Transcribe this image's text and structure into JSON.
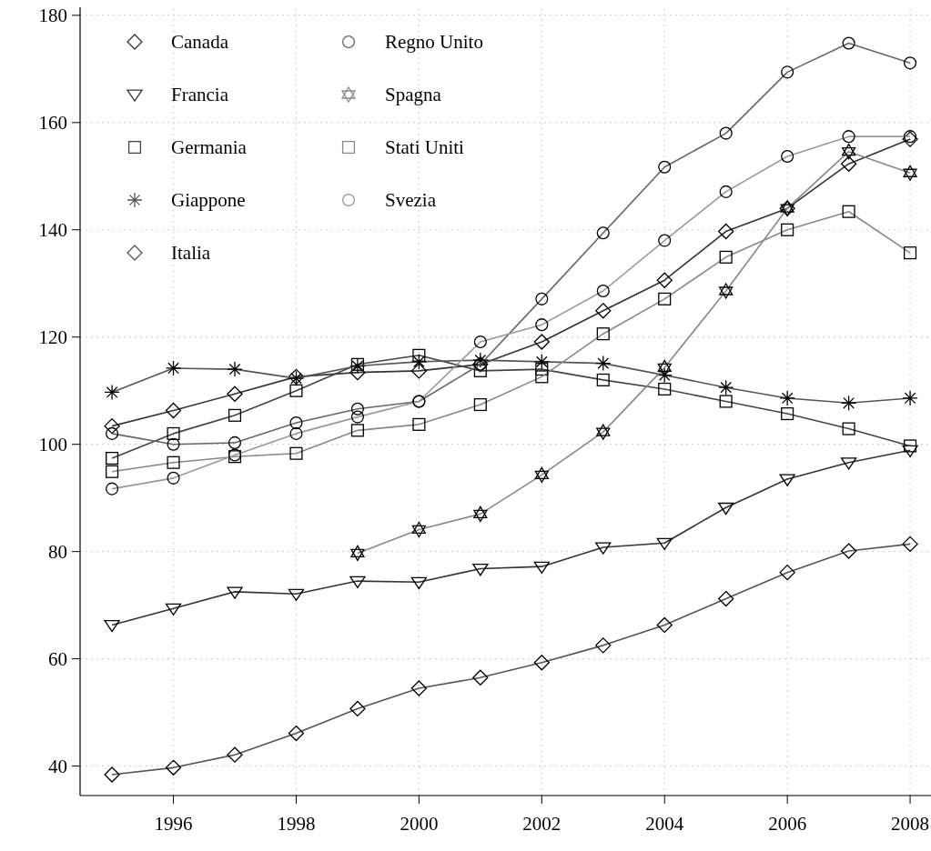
{
  "chart_data": {
    "type": "line",
    "x": [
      1995,
      1996,
      1997,
      1998,
      1999,
      2000,
      2001,
      2002,
      2003,
      2004,
      2005,
      2006,
      2007,
      2008
    ],
    "xlim": [
      1994.48,
      2008.34
    ],
    "xticks": [
      1996,
      1998,
      2000,
      2002,
      2004,
      2006,
      2008
    ],
    "ylim": [
      34.5,
      181.5
    ],
    "yticks": [
      40,
      60,
      80,
      100,
      120,
      140,
      160,
      180
    ],
    "grid": true,
    "legend": "top left",
    "line_style": "solid",
    "series": [
      {
        "name": "Canada",
        "color": "#333333",
        "marker": "diamond",
        "values": [
          103.4,
          106.3,
          109.4,
          112.6,
          113.4,
          113.7,
          114.9,
          119.1,
          124.9,
          130.6,
          139.7,
          144.0,
          152.3,
          156.9
        ]
      },
      {
        "name": "Francia",
        "color": "#333333",
        "marker": "triangle",
        "values": [
          66.3,
          69.4,
          72.5,
          72.1,
          74.5,
          74.3,
          76.8,
          77.2,
          80.8,
          81.6,
          88.2,
          93.5,
          96.6,
          98.9
        ]
      },
      {
        "name": "Germania",
        "color": "#444444",
        "marker": "square",
        "values": [
          97.4,
          102.0,
          105.4,
          110.0,
          114.9,
          116.6,
          113.7,
          114.0,
          112.0,
          110.3,
          108.0,
          105.7,
          102.9,
          99.7
        ]
      },
      {
        "name": "Giappone",
        "color": "#555555",
        "marker": "cross",
        "values": [
          109.7,
          114.2,
          114.0,
          112.3,
          114.6,
          115.4,
          115.7,
          115.4,
          115.1,
          112.9,
          110.6,
          108.6,
          107.7,
          108.6
        ]
      },
      {
        "name": "Italia",
        "color": "#555555",
        "marker": "diamond",
        "values": [
          38.4,
          39.7,
          42.1,
          46.1,
          50.7,
          54.5,
          56.5,
          59.3,
          62.5,
          66.3,
          71.2,
          76.1,
          80.1,
          81.4
        ]
      },
      {
        "name": "Regno Unito",
        "color": "#666666",
        "marker": "circle",
        "values": [
          102.0,
          100.0,
          100.3,
          104.0,
          106.6,
          108.0,
          114.9,
          127.1,
          139.4,
          151.7,
          158.0,
          169.4,
          174.8,
          171.1
        ]
      },
      {
        "name": "Spagna",
        "color": "#888888",
        "marker": "star",
        "values": [
          null,
          null,
          null,
          null,
          79.7,
          84.1,
          87.0,
          94.3,
          102.3,
          114.3,
          128.6,
          144.0,
          154.6,
          150.6
        ]
      },
      {
        "name": "Stati Uniti",
        "color": "#888888",
        "marker": "square",
        "values": [
          94.9,
          96.6,
          97.7,
          98.3,
          102.6,
          103.7,
          107.4,
          112.6,
          120.6,
          127.1,
          134.9,
          140.0,
          143.4,
          135.7
        ]
      },
      {
        "name": "Svezia",
        "color": "#999999",
        "marker": "circle",
        "values": [
          91.7,
          93.7,
          98.0,
          102.0,
          105.1,
          108.0,
          119.1,
          122.3,
          128.6,
          138.0,
          147.1,
          153.7,
          157.4,
          157.4
        ]
      }
    ]
  }
}
